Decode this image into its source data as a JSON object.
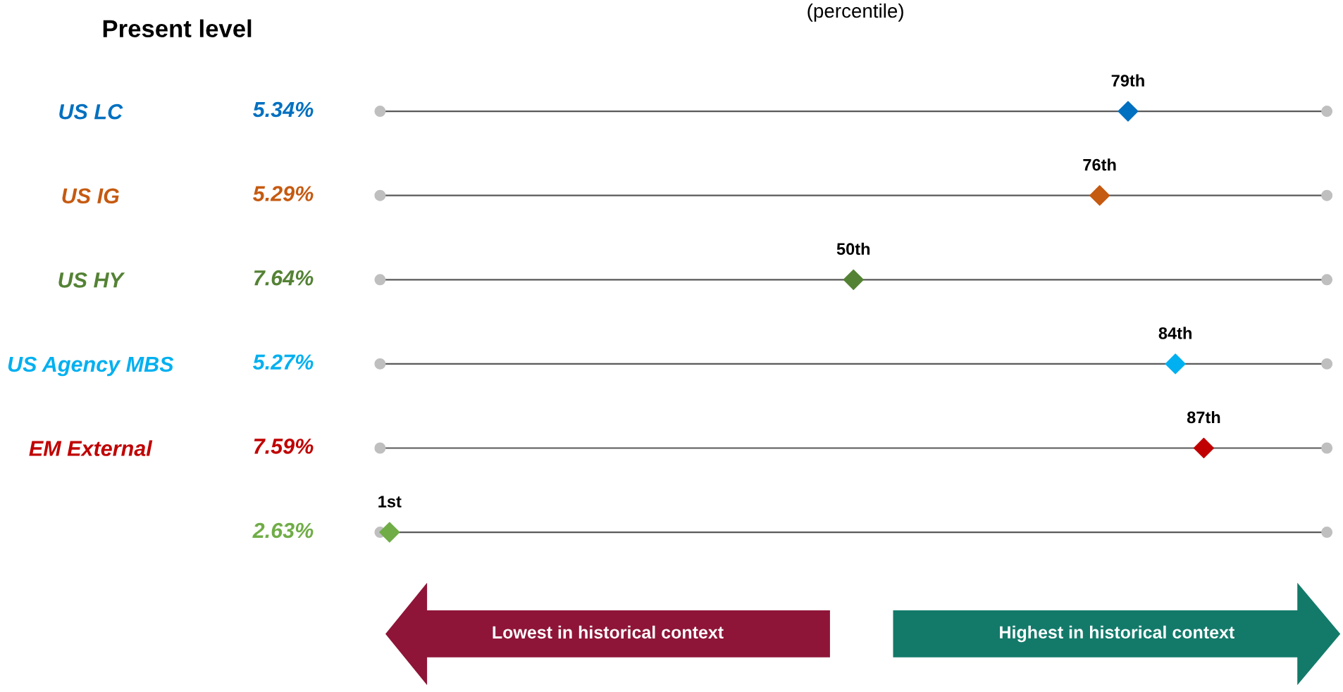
{
  "chart_data": {
    "type": "scatter",
    "orientation": "horizontal",
    "title": "(percentile)",
    "categories": [
      "US LC",
      "US IG",
      "US HY",
      "US Agency MBS",
      "EM External",
      null
    ],
    "y2_categories": [
      "5.34%",
      "5.29%",
      "7.64%",
      "5.27%",
      "7.59%",
      "2.63%"
    ],
    "series": [
      {
        "color": "#bfbfbf",
        "marker": "circle",
        "values": [
          0,
          0,
          0,
          0,
          0,
          0
        ]
      },
      {
        "color": "#bfbfbf",
        "marker": "circle",
        "values": [
          100,
          100,
          100,
          100,
          100,
          100
        ]
      },
      {
        "colors": [
          "#0070c0",
          "#c55a11",
          "#548235",
          "#00b0f0",
          "#c00000",
          "#70ad47"
        ],
        "marker": "diamond",
        "values": [
          79,
          76,
          50,
          84,
          87,
          1
        ],
        "value_labels": [
          "79th",
          "76th",
          "50th",
          "84th",
          "87th",
          "1st"
        ]
      }
    ],
    "xlim": [
      0,
      100
    ],
    "grid": "y",
    "legend": false,
    "annotations": [
      "Present level",
      "Lowest in historical context",
      "Highest in historical context"
    ]
  }
}
